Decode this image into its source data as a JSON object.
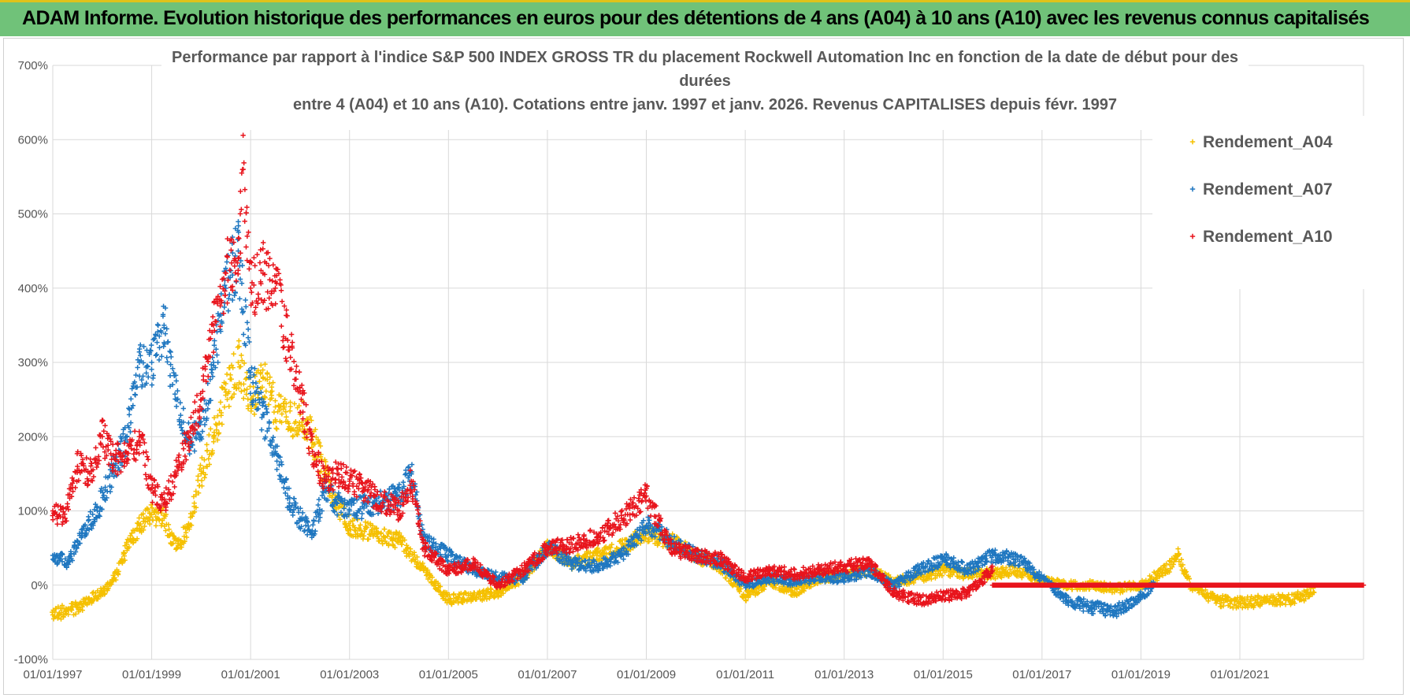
{
  "banner": {
    "title": "ADAM Informe. Evolution historique des performances en euros pour des détentions de 4 ans (A04) à 10 ans (A10) avec les revenus connus capitalisés"
  },
  "chart_data": {
    "type": "scatter",
    "title_lines": [
      "Performance par rapport à l'indice S&P 500 INDEX GROSS TR  du placement Rockwell Automation Inc en fonction de la date de début pour des",
      "durées",
      "entre 4 (A04) et 10 ans (A10). Cotations entre janv. 1997 et janv. 2026. Revenus CAPITALISES depuis févr. 1997"
    ],
    "xlabel": "",
    "ylabel": "",
    "xlim": [
      1997.0,
      2023.5
    ],
    "ylim": [
      -100,
      700
    ],
    "y_ticks": [
      -100,
      0,
      100,
      200,
      300,
      400,
      500,
      600,
      700
    ],
    "y_tick_labels": [
      "-100%",
      "0%",
      "100%",
      "200%",
      "300%",
      "400%",
      "500%",
      "600%",
      "700%"
    ],
    "x_ticks": [
      1997,
      1999,
      2001,
      2003,
      2005,
      2007,
      2009,
      2011,
      2013,
      2015,
      2017,
      2019,
      2021
    ],
    "x_tick_labels": [
      "01/01/1997",
      "01/01/1999",
      "01/01/2001",
      "01/01/2003",
      "01/01/2005",
      "01/01/2007",
      "01/01/2009",
      "01/01/2011",
      "01/01/2013",
      "01/01/2015",
      "01/01/2017",
      "01/01/2019",
      "01/01/2021"
    ],
    "grid": true,
    "legend_position": "top-right",
    "marker": "+",
    "series": [
      {
        "name": "Rendement_A04",
        "color": "#f5c000",
        "x": [
          1997.0,
          1997.5,
          1998.0,
          1998.25,
          1998.5,
          1998.75,
          1999.0,
          1999.25,
          1999.5,
          1999.75,
          2000.0,
          2000.25,
          2000.5,
          2000.75,
          2001.0,
          2001.25,
          2001.5,
          2001.75,
          2002.0,
          2002.25,
          2002.5,
          2002.75,
          2003.0,
          2003.5,
          2004.0,
          2004.5,
          2005.0,
          2005.5,
          2006.0,
          2006.5,
          2007.0,
          2007.5,
          2008.0,
          2008.5,
          2009.0,
          2009.5,
          2010.0,
          2010.5,
          2011.0,
          2011.5,
          2012.0,
          2012.5,
          2013.0,
          2013.5,
          2014.0,
          2014.5,
          2015.0,
          2015.5,
          2016.0,
          2016.5,
          2017.0,
          2017.5,
          2018.0,
          2018.5,
          2019.0,
          2019.5,
          2019.75,
          2020.0,
          2020.5,
          2021.0,
          2021.5,
          2022.0,
          2022.5
        ],
        "values": [
          -40,
          -30,
          -10,
          10,
          50,
          80,
          95,
          90,
          50,
          80,
          150,
          200,
          260,
          300,
          250,
          280,
          240,
          220,
          230,
          200,
          150,
          110,
          80,
          70,
          60,
          20,
          -20,
          -15,
          -10,
          10,
          50,
          30,
          40,
          50,
          70,
          60,
          40,
          25,
          -15,
          5,
          -10,
          10,
          15,
          20,
          5,
          10,
          20,
          15,
          15,
          20,
          5,
          0,
          0,
          -5,
          0,
          20,
          40,
          0,
          -20,
          -25,
          -20,
          -20,
          -10
        ]
      },
      {
        "name": "Rendement_A07",
        "color": "#1f77c0",
        "x": [
          1997.0,
          1997.3,
          1997.6,
          1997.9,
          1998.2,
          1998.5,
          1998.75,
          1999.0,
          1999.25,
          1999.5,
          1999.75,
          2000.0,
          2000.25,
          2000.5,
          2000.75,
          2001.0,
          2001.25,
          2001.5,
          2001.75,
          2002.0,
          2002.25,
          2002.5,
          2002.75,
          2003.0,
          2003.5,
          2004.0,
          2004.25,
          2004.5,
          2005.0,
          2005.5,
          2006.0,
          2006.5,
          2007.0,
          2007.5,
          2008.0,
          2008.5,
          2009.0,
          2009.5,
          2010.0,
          2010.5,
          2011.0,
          2011.5,
          2012.0,
          2012.5,
          2013.0,
          2013.5,
          2014.0,
          2014.5,
          2015.0,
          2015.5,
          2016.0,
          2016.5,
          2017.0,
          2017.5,
          2018.0,
          2018.5,
          2019.0,
          2019.25
        ],
        "values": [
          40,
          30,
          70,
          100,
          150,
          200,
          300,
          300,
          350,
          250,
          200,
          200,
          300,
          400,
          450,
          280,
          230,
          180,
          120,
          90,
          70,
          130,
          110,
          100,
          110,
          120,
          150,
          60,
          40,
          20,
          10,
          10,
          50,
          30,
          25,
          40,
          80,
          60,
          40,
          30,
          0,
          10,
          5,
          10,
          10,
          20,
          0,
          20,
          35,
          20,
          40,
          35,
          10,
          -20,
          -30,
          -35,
          -15,
          0
        ]
      },
      {
        "name": "Rendement_A10",
        "color": "#e8141c",
        "x": [
          1997.0,
          1997.25,
          1997.5,
          1997.75,
          1998.0,
          1998.25,
          1998.5,
          1998.75,
          1999.0,
          1999.25,
          1999.5,
          1999.75,
          2000.0,
          2000.25,
          2000.5,
          2000.75,
          2000.85,
          2001.0,
          2001.25,
          2001.5,
          2001.75,
          2002.0,
          2002.25,
          2002.5,
          2002.75,
          2003.0,
          2003.5,
          2004.0,
          2004.25,
          2004.5,
          2005.0,
          2005.5,
          2006.0,
          2006.5,
          2007.0,
          2007.5,
          2008.0,
          2008.5,
          2009.0,
          2009.5,
          2010.0,
          2010.5,
          2011.0,
          2011.5,
          2012.0,
          2012.5,
          2013.0,
          2013.5,
          2014.0,
          2014.5,
          2015.0,
          2015.5,
          2016.0
        ],
        "values": [
          100,
          90,
          160,
          150,
          200,
          170,
          170,
          200,
          130,
          110,
          150,
          200,
          250,
          350,
          420,
          440,
          560,
          400,
          420,
          400,
          330,
          260,
          180,
          140,
          150,
          140,
          120,
          100,
          140,
          50,
          20,
          30,
          0,
          20,
          50,
          55,
          65,
          90,
          120,
          50,
          40,
          35,
          10,
          20,
          15,
          20,
          25,
          30,
          -10,
          -20,
          -15,
          -10,
          20
        ],
        "flat_segment": {
          "from": 2016.0,
          "to": 2023.5,
          "value": 0
        }
      }
    ]
  }
}
